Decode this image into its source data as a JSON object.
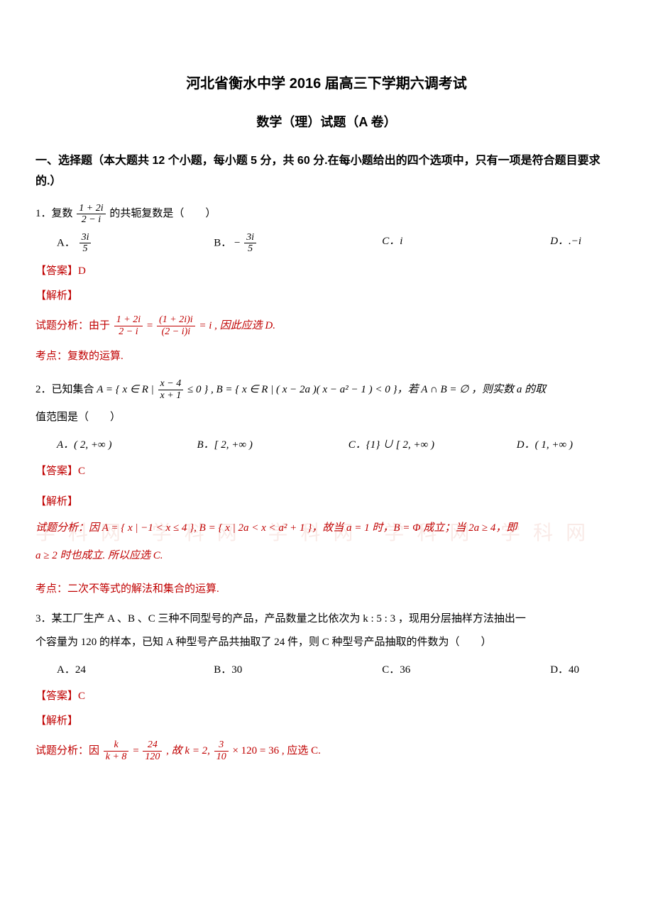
{
  "title": "河北省衡水中学 2016 届高三下学期六调考试",
  "subtitle": "数学（理）试题（A 卷）",
  "section_heading": "一、选择题（本大题共 12 个小题，每小题 5 分，共 60 分.在每小题给出的四个选项中，只有一项是符合题目要求的.）",
  "q1": {
    "stem_prefix": "1．复数 ",
    "stem_suffix": " 的共轭复数是（　　）",
    "frac_num": "1 + 2i",
    "frac_den": "2 − i",
    "optA_label": "A．",
    "optA_num": "3i",
    "optA_den": "5",
    "optB_label": "B．",
    "optB_neg": "−",
    "optB_num": "3i",
    "optB_den": "5",
    "optC": "C．i",
    "optD": "D．.−i",
    "answer": "【答案】D",
    "analysis_label": "【解析】",
    "analysis_prefix": "试题分析：由于 ",
    "analysis_eq_lhs_num": "1 + 2i",
    "analysis_eq_lhs_den": "2 − i",
    "analysis_eq_mid": " = ",
    "analysis_eq_rhs_num": "(1 + 2i)i",
    "analysis_eq_rhs_den": "(2 − i)i",
    "analysis_eq_result": " = i , 因此应选 D.",
    "topic": "考点：复数的运算."
  },
  "q2": {
    "stem_prefix": "2．已知集合 ",
    "setA_outer_l": "A = { x ∈ R | ",
    "setA_frac_num": "x − 4",
    "setA_frac_den": "x + 1",
    "setA_outer_r": " ≤ 0 } , B = { x ∈ R | ( x − 2a )( x − a² − 1 ) < 0 }，若 A ∩ B = ∅ ，则实数 a 的取",
    "stem_line2": "值范围是（　　）",
    "optA": "A．( 2, +∞ )",
    "optB": "B．[ 2, +∞ )",
    "optC": "C．{1} ∪ [ 2, +∞ )",
    "optD": "D．( 1, +∞ )",
    "answer": "【答案】C",
    "analysis_label": "【解析】",
    "analysis_line1": "试题分析：因 A = { x | −1 < x ≤ 4 }, B = { x | 2a < x < a² + 1 }，故当 a = 1 时，B = Φ 成立；当 2a ≥ 4，即",
    "analysis_line2": "a ≥ 2 时也成立. 所以应选 C.",
    "topic": "考点：二次不等式的解法和集合的运算."
  },
  "q3": {
    "stem_line1": "3．某工厂生产 A 、B 、C 三种不同型号的产品，产品数量之比依次为 k : 5 : 3 ，现用分层抽样方法抽出一",
    "stem_line2": "个容量为 120 的样本，已知 A 种型号产品共抽取了 24 件，则 C 种型号产品抽取的件数为（　　）",
    "optA": "A．24",
    "optB": "B．30",
    "optC": "C．36",
    "optD": "D．40",
    "answer": "【答案】C",
    "analysis_label": "【解析】",
    "analysis_prefix": "试题分析：因 ",
    "frac1_num": "k",
    "frac1_den": "k + 8",
    "mid1": " = ",
    "frac2_num": "24",
    "frac2_den": "120",
    "mid2": " , 故 k = 2, ",
    "frac3_num": "3",
    "frac3_den": "10",
    "tail": " × 120 = 36 , 应选 C."
  },
  "colors": {
    "text": "#000000",
    "accent": "#c00000",
    "watermark": "#f4d7d0",
    "background": "#ffffff"
  }
}
